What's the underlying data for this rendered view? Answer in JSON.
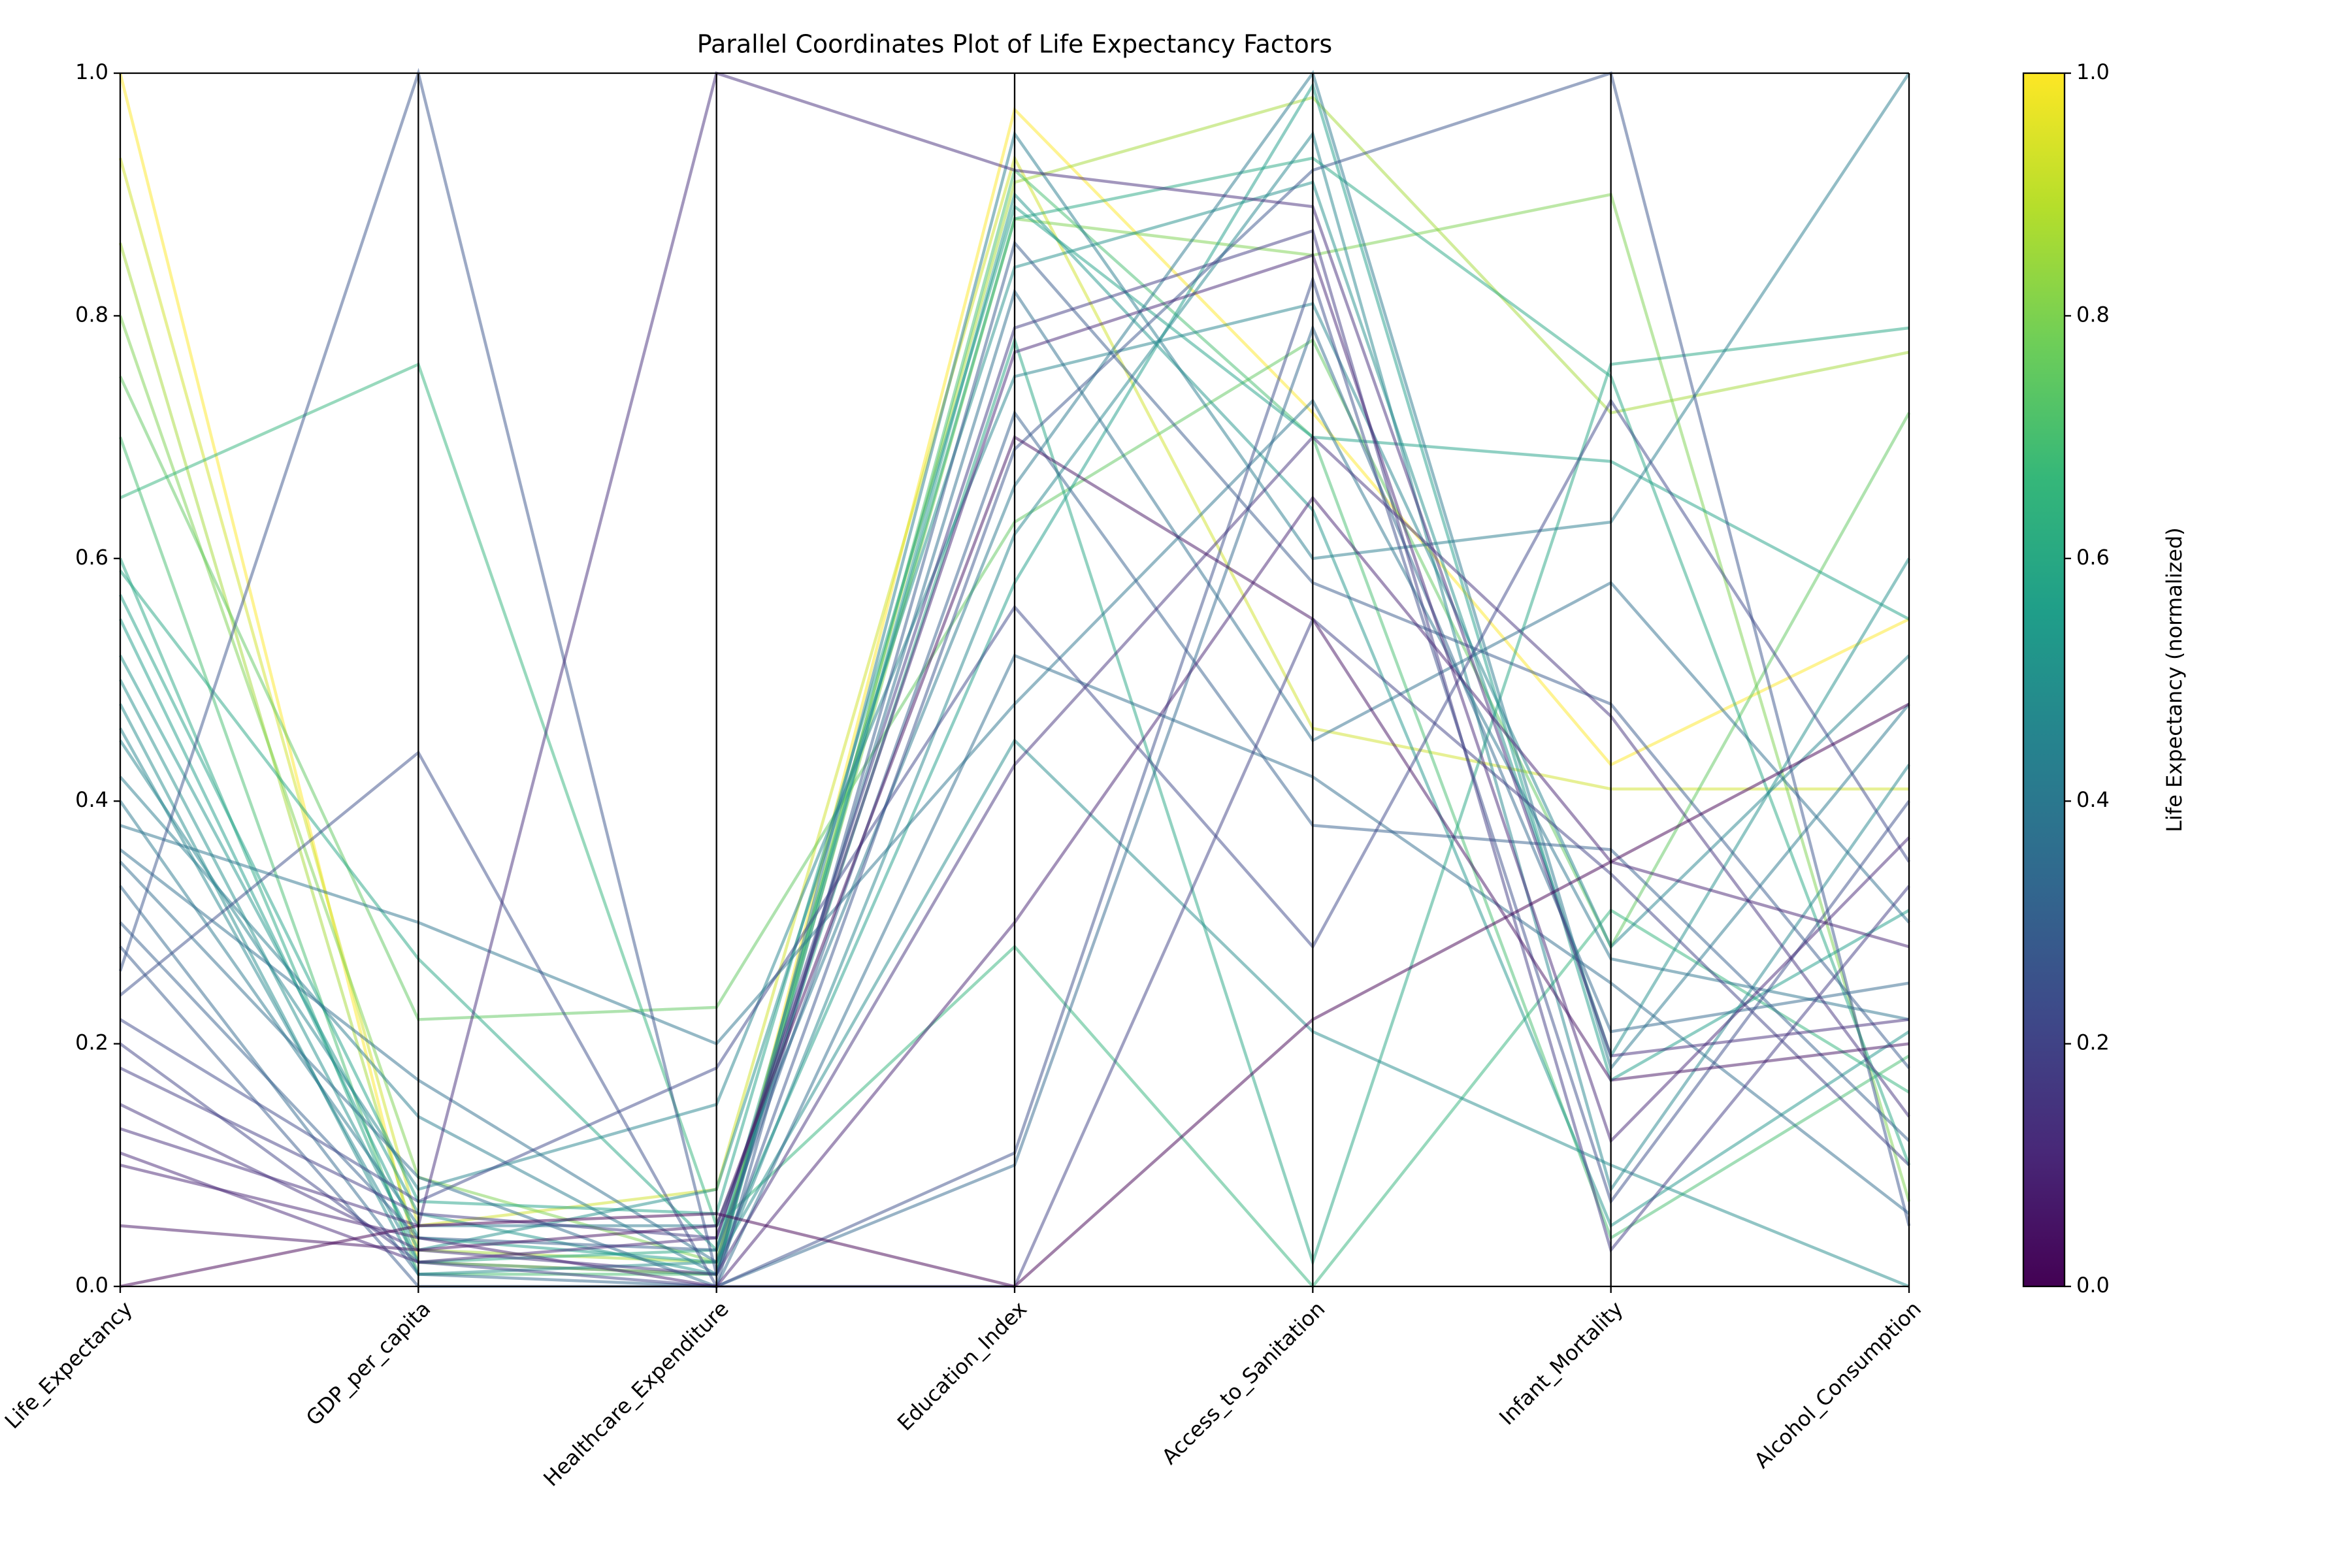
{
  "chart_data": {
    "type": "parallel",
    "title": "Parallel Coordinates Plot of Life Expectancy Factors",
    "axes": [
      "Life_Expectancy",
      "GDP_per_capita",
      "Healthcare_Expenditure",
      "Education_Index",
      "Access_to_Sanitation",
      "Infant_Mortality",
      "Alcohol_Consumption"
    ],
    "ylim": [
      0,
      1
    ],
    "yticks": [
      {
        "value": 0,
        "label": "0.0"
      },
      {
        "value": 0.2,
        "label": "0.2"
      },
      {
        "value": 0.4,
        "label": "0.4"
      },
      {
        "value": 0.6,
        "label": "0.6"
      },
      {
        "value": 0.8,
        "label": "0.8"
      },
      {
        "value": 1,
        "label": "1.0"
      }
    ],
    "colorbar": {
      "label": "Life Expectancy (normalized)",
      "lim": [
        0,
        1
      ],
      "ticks": [
        {
          "value": 0,
          "label": "0.0"
        },
        {
          "value": 0.2,
          "label": "0.2"
        },
        {
          "value": 0.4,
          "label": "0.4"
        },
        {
          "value": 0.6,
          "label": "0.6"
        },
        {
          "value": 0.8,
          "label": "0.8"
        },
        {
          "value": 1,
          "label": "1.0"
        }
      ],
      "colormap": [
        "#440154",
        "#482878",
        "#3e4989",
        "#31688e",
        "#26828e",
        "#1f9e89",
        "#35b779",
        "#6ece58",
        "#b5de2b",
        "#fde725"
      ]
    },
    "series": [
      {
        "values": [
          1.0,
          0.02,
          0.01,
          0.97,
          0.72,
          0.43,
          0.55
        ]
      },
      {
        "values": [
          0.93,
          0.05,
          0.08,
          0.93,
          0.46,
          0.41,
          0.41
        ]
      },
      {
        "values": [
          0.86,
          0.03,
          0.02,
          0.91,
          0.98,
          0.72,
          0.77
        ]
      },
      {
        "values": [
          0.8,
          0.09,
          0.02,
          0.88,
          0.85,
          0.9,
          0.07
        ]
      },
      {
        "values": [
          0.75,
          0.22,
          0.23,
          0.63,
          0.78,
          0.28,
          0.72
        ]
      },
      {
        "values": [
          0.7,
          0.01,
          0.01,
          0.92,
          0.7,
          0.04,
          0.19
        ]
      },
      {
        "values": [
          0.65,
          0.76,
          0.05,
          0.28,
          0.0,
          0.31,
          0.16
        ]
      },
      {
        "values": [
          0.6,
          0.02,
          0.03,
          0.88,
          0.93,
          0.75,
          0.1
        ]
      },
      {
        "values": [
          0.59,
          0.27,
          0.03,
          0.78,
          0.02,
          0.76,
          0.79
        ]
      },
      {
        "values": [
          0.57,
          0.07,
          0.06,
          0.89,
          0.7,
          0.68,
          0.55
        ]
      },
      {
        "values": [
          0.55,
          0.04,
          0.02,
          0.58,
          0.99,
          0.17,
          0.31
        ]
      },
      {
        "values": [
          0.52,
          0.06,
          0.01,
          0.9,
          0.64,
          0.05,
          0.21
        ]
      },
      {
        "values": [
          0.5,
          0.03,
          0.08,
          0.84,
          0.91,
          0.19,
          0.6
        ]
      },
      {
        "values": [
          0.48,
          0.01,
          0.02,
          0.45,
          0.21,
          0.1,
          0.0
        ]
      },
      {
        "values": [
          0.46,
          0.02,
          0.01,
          0.62,
          0.95,
          0.08,
          0.43
        ]
      },
      {
        "values": [
          0.45,
          0.08,
          0.15,
          0.75,
          0.81,
          0.28,
          0.52
        ]
      },
      {
        "values": [
          0.42,
          0.14,
          0.01,
          0.95,
          0.6,
          0.63,
          1.0
        ]
      },
      {
        "values": [
          0.4,
          0.05,
          0.05,
          0.66,
          1.0,
          0.18,
          0.48
        ]
      },
      {
        "values": [
          0.38,
          0.3,
          0.2,
          0.48,
          0.73,
          0.27,
          0.22
        ]
      },
      {
        "values": [
          0.36,
          0.17,
          0.02,
          0.82,
          0.45,
          0.58,
          0.3
        ]
      },
      {
        "values": [
          0.35,
          0.09,
          0.0,
          0.52,
          0.42,
          0.25,
          0.06
        ]
      },
      {
        "values": [
          0.33,
          0.01,
          0.0,
          0.1,
          0.79,
          0.21,
          0.25
        ]
      },
      {
        "values": [
          0.3,
          0.04,
          0.03,
          0.72,
          0.38,
          0.36,
          0.12
        ]
      },
      {
        "values": [
          0.28,
          0.0,
          0.0,
          0.86,
          0.58,
          0.48,
          0.18
        ]
      },
      {
        "values": [
          0.26,
          1.0,
          0.01,
          0.69,
          0.92,
          1.0,
          0.05
        ]
      },
      {
        "values": [
          0.24,
          0.44,
          0.0,
          0.11,
          0.83,
          0.07,
          0.4
        ]
      },
      {
        "values": [
          0.22,
          0.07,
          0.18,
          0.56,
          0.28,
          0.73,
          0.35
        ]
      },
      {
        "values": [
          0.2,
          0.02,
          0.0,
          0.0,
          0.55,
          0.34,
          0.1
        ]
      },
      {
        "values": [
          0.18,
          0.06,
          0.04,
          0.79,
          0.87,
          0.03,
          0.33
        ]
      },
      {
        "values": [
          0.15,
          0.03,
          0.01,
          0.43,
          0.7,
          0.47,
          0.14
        ]
      },
      {
        "values": [
          0.13,
          0.05,
          1.0,
          0.92,
          0.89,
          0.19,
          0.22
        ]
      },
      {
        "values": [
          0.11,
          0.02,
          0.04,
          0.77,
          0.85,
          0.12,
          0.37
        ]
      },
      {
        "values": [
          0.1,
          0.04,
          0.0,
          0.3,
          0.65,
          0.35,
          0.28
        ]
      },
      {
        "values": [
          0.05,
          0.03,
          0.05,
          0.7,
          0.55,
          0.17,
          0.2
        ]
      },
      {
        "values": [
          0.0,
          0.05,
          0.06,
          0.0,
          0.22,
          0.35,
          0.48
        ]
      }
    ]
  }
}
